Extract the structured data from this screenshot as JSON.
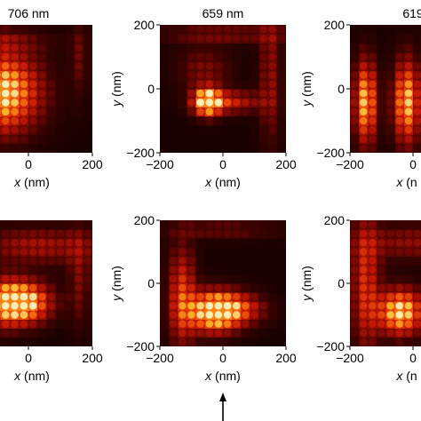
{
  "chart_data": {
    "type": "heatmap",
    "panels": [
      {
        "row": 0,
        "col": 0,
        "title": "706 nm",
        "xlabel": "x (nm)",
        "ylabel": "",
        "xticks": [
          "0",
          "200"
        ],
        "yticks": [],
        "xlim": [
          -200,
          200
        ],
        "ylim": [
          -200,
          200
        ],
        "hotspots": [
          {
            "x": -90,
            "y": -10,
            "sx": 85,
            "sy": 85,
            "a": 1.0
          },
          {
            "x": -150,
            "y": 150,
            "sx": 140,
            "sy": 25,
            "a": 0.25
          },
          {
            "x": 160,
            "y": 100,
            "sx": 20,
            "sy": 90,
            "a": 0.2
          }
        ]
      },
      {
        "row": 0,
        "col": 1,
        "title": "659 nm",
        "xlabel": "x (nm)",
        "ylabel": "y (nm)",
        "xticks": [
          "−200",
          "0",
          "200"
        ],
        "yticks": [
          "200",
          "0",
          "−200"
        ],
        "xlim": [
          -200,
          200
        ],
        "ylim": [
          -200,
          200
        ],
        "hotspots": [
          {
            "x": -50,
            "y": -40,
            "sx": 30,
            "sy": 30,
            "a": 1.0
          },
          {
            "x": 20,
            "y": -40,
            "sx": 70,
            "sy": 25,
            "a": 0.45
          },
          {
            "x": 150,
            "y": 40,
            "sx": 25,
            "sy": 150,
            "a": 0.3
          },
          {
            "x": 0,
            "y": 170,
            "sx": 150,
            "sy": 20,
            "a": 0.25
          },
          {
            "x": -60,
            "y": 60,
            "sx": 60,
            "sy": 50,
            "a": 0.25
          }
        ]
      },
      {
        "row": 0,
        "col": 2,
        "title": "619",
        "xlabel": "x (n",
        "ylabel": "y (nm)",
        "xticks": [
          "−200",
          "0"
        ],
        "yticks": [
          "200",
          "0",
          "−200"
        ],
        "xlim": [
          -200,
          200
        ],
        "ylim": [
          -200,
          200
        ],
        "hotspots": [
          {
            "x": -150,
            "y": -40,
            "sx": 25,
            "sy": 90,
            "a": 0.85
          },
          {
            "x": -20,
            "y": -40,
            "sx": 30,
            "sy": 90,
            "a": 0.85
          }
        ]
      },
      {
        "row": 1,
        "col": 0,
        "title": "",
        "xlabel": "x (nm)",
        "ylabel": "",
        "xticks": [
          "0",
          "200"
        ],
        "yticks": [],
        "xlim": [
          -200,
          200
        ],
        "ylim": [
          -200,
          200
        ],
        "hotspots": [
          {
            "x": -20,
            "y": -60,
            "sx": 60,
            "sy": 45,
            "a": 1.0
          },
          {
            "x": -130,
            "y": -60,
            "sx": 70,
            "sy": 55,
            "a": 0.65
          },
          {
            "x": 30,
            "y": 120,
            "sx": 130,
            "sy": 40,
            "a": 0.35
          },
          {
            "x": 160,
            "y": 20,
            "sx": 25,
            "sy": 110,
            "a": 0.25
          }
        ]
      },
      {
        "row": 1,
        "col": 1,
        "title": "",
        "xlabel": "x (nm)",
        "ylabel": "y (nm)",
        "xticks": [
          "−200",
          "0",
          "200"
        ],
        "yticks": [
          "200",
          "0",
          "−200"
        ],
        "xlim": [
          -200,
          200
        ],
        "ylim": [
          -200,
          200
        ],
        "hotspots": [
          {
            "x": -30,
            "y": -90,
            "sx": 55,
            "sy": 45,
            "a": 1.0
          },
          {
            "x": -130,
            "y": -40,
            "sx": 30,
            "sy": 110,
            "a": 0.55
          },
          {
            "x": 50,
            "y": -80,
            "sx": 60,
            "sy": 35,
            "a": 0.5
          },
          {
            "x": 0,
            "y": 170,
            "sx": 140,
            "sy": 20,
            "a": 0.2
          }
        ]
      },
      {
        "row": 1,
        "col": 2,
        "title": "",
        "xlabel": "x (n",
        "ylabel": "y (nm)",
        "xticks": [
          "−200",
          "0"
        ],
        "yticks": [
          "200",
          "0",
          "−200"
        ],
        "xlim": [
          -200,
          200
        ],
        "ylim": [
          -200,
          200
        ],
        "hotspots": [
          {
            "x": -40,
            "y": -90,
            "sx": 50,
            "sy": 50,
            "a": 0.95
          },
          {
            "x": -150,
            "y": 0,
            "sx": 30,
            "sy": 150,
            "a": 0.5
          },
          {
            "x": 0,
            "y": 130,
            "sx": 120,
            "sy": 40,
            "a": 0.3
          }
        ]
      }
    ],
    "annotations": [
      {
        "type": "arrow",
        "at_x": 0,
        "under": "row-1 col-1 panel"
      }
    ]
  }
}
